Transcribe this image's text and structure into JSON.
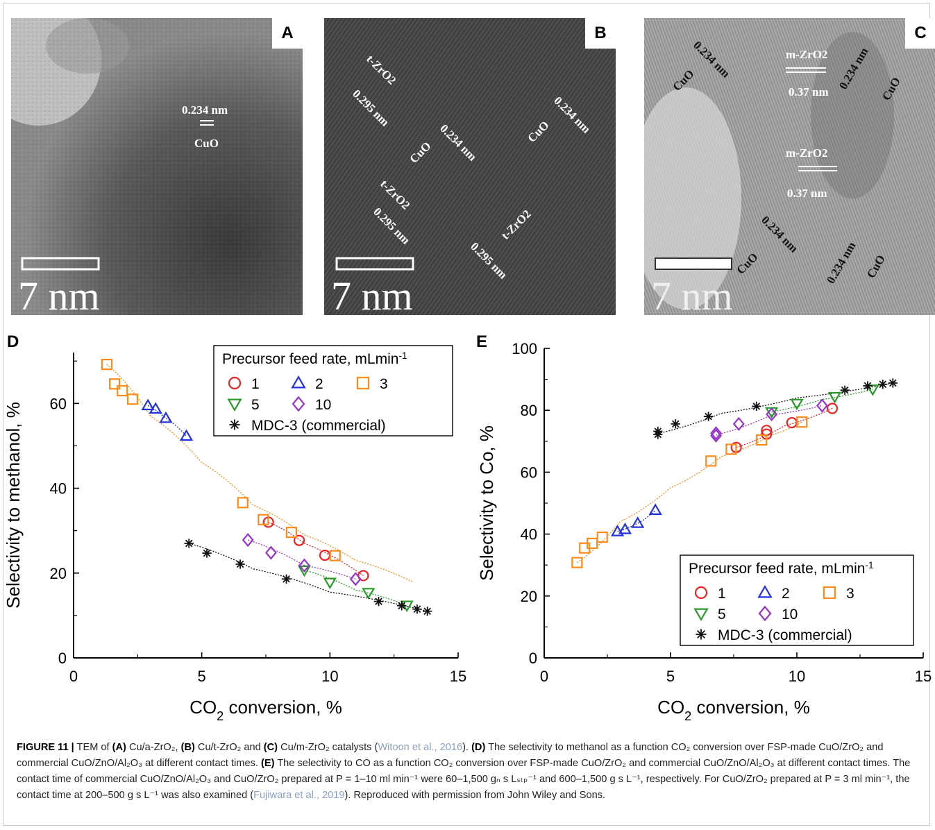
{
  "tem_panels": [
    {
      "id": "A",
      "scale": "7 nm",
      "annotations": [
        "0.234 nm",
        "CuO"
      ]
    },
    {
      "id": "B",
      "scale": "7 nm",
      "annotations": [
        "t-ZrO2",
        "0.295 nm",
        "0.234 nm",
        "CuO",
        "0.234 nm",
        "CuO",
        "t-ZrO2",
        "0.295 nm",
        "t-ZrO2",
        "0.295 nm"
      ]
    },
    {
      "id": "C",
      "scale": "7 nm",
      "annotations": [
        "0.234 nm",
        "CuO",
        "m-ZrO2",
        "0.37 nm",
        "0.234 nm",
        "CuO",
        "m-ZrO2",
        "0.37 nm",
        "0.234 nm",
        "CuO",
        "0.234 nm",
        "CuO"
      ]
    }
  ],
  "chart_data": [
    {
      "panel": "D",
      "type": "scatter",
      "xlabel": "CO2 conversion, %",
      "ylabel": "Selectivity to methanol, %",
      "xlim": [
        0,
        15
      ],
      "ylim": [
        0,
        72
      ],
      "xticks": [
        0,
        5,
        10,
        15
      ],
      "yticks": [
        0,
        20,
        40,
        60
      ],
      "legend_title": "Precursor feed rate, mLmin-1",
      "legend_position": "top-right",
      "series": [
        {
          "name": "1",
          "marker": "circle",
          "color": "#ee2222",
          "points": [
            [
              7.6,
              32.0
            ],
            [
              8.8,
              27.7
            ],
            [
              9.8,
              24.2
            ],
            [
              11.3,
              19.4
            ]
          ]
        },
        {
          "name": "2",
          "marker": "triangle-up",
          "color": "#2233dd",
          "points": [
            [
              2.9,
              59.5
            ],
            [
              3.2,
              58.7
            ],
            [
              3.6,
              56.5
            ],
            [
              4.4,
              52.3
            ]
          ]
        },
        {
          "name": "3",
          "marker": "square",
          "color": "#ff8c1a",
          "points": [
            [
              1.3,
              69.2
            ],
            [
              1.6,
              64.6
            ],
            [
              1.9,
              63.0
            ],
            [
              2.3,
              61.0
            ],
            [
              6.6,
              36.6
            ],
            [
              7.4,
              32.6
            ],
            [
              8.5,
              29.6
            ],
            [
              10.2,
              24.1
            ]
          ]
        },
        {
          "name": "5",
          "marker": "triangle-down",
          "color": "#2a9a2a",
          "points": [
            [
              9.0,
              20.7
            ],
            [
              10.0,
              17.8
            ],
            [
              11.5,
              15.4
            ],
            [
              13.0,
              12.4
            ]
          ]
        },
        {
          "name": "10",
          "marker": "diamond",
          "color": "#9933cc",
          "points": [
            [
              6.8,
              27.8
            ],
            [
              7.7,
              24.8
            ],
            [
              9.0,
              21.8
            ],
            [
              11.0,
              18.6
            ]
          ]
        },
        {
          "name": "MDC-3 (commercial)",
          "marker": "asterisk",
          "color": "#111111",
          "points": [
            [
              4.5,
              27.0
            ],
            [
              5.2,
              24.7
            ],
            [
              6.5,
              22.1
            ],
            [
              8.3,
              18.6
            ],
            [
              11.9,
              13.3
            ],
            [
              12.8,
              12.3
            ],
            [
              13.4,
              11.5
            ],
            [
              13.8,
              11.0
            ]
          ]
        }
      ],
      "fits": [
        {
          "color": "#ff8c1a",
          "points": [
            [
              1.3,
              69.2
            ],
            [
              3,
              57
            ],
            [
              5,
              46
            ],
            [
              7,
              36
            ],
            [
              9,
              29
            ],
            [
              11,
              23
            ],
            [
              13.2,
              18
            ]
          ]
        },
        {
          "color": "#ee2222",
          "points": [
            [
              7.6,
              32.0
            ],
            [
              9,
              27
            ],
            [
              11.3,
              19.4
            ]
          ]
        },
        {
          "color": "#2233dd",
          "points": [
            [
              2.9,
              59.5
            ],
            [
              3.6,
              56.5
            ],
            [
              4.4,
              52.3
            ]
          ]
        },
        {
          "color": "#2a9a2a",
          "points": [
            [
              9.0,
              20.7
            ],
            [
              11,
              16
            ],
            [
              13.0,
              12.4
            ]
          ]
        },
        {
          "color": "#9933cc",
          "points": [
            [
              6.8,
              27.8
            ],
            [
              9,
              21.8
            ],
            [
              11.0,
              18.6
            ]
          ]
        },
        {
          "color": "#111111",
          "points": [
            [
              4.5,
              27.0
            ],
            [
              7,
              21
            ],
            [
              10,
              15.5
            ],
            [
              13.8,
              11.0
            ]
          ]
        }
      ]
    },
    {
      "panel": "E",
      "type": "scatter",
      "xlabel": "CO2 conversion, %",
      "ylabel": "Selectivity to Co, %",
      "xlim": [
        0,
        15
      ],
      "ylim": [
        0,
        100
      ],
      "xticks": [
        0,
        5,
        10,
        15
      ],
      "yticks": [
        0,
        20,
        40,
        60,
        80,
        100
      ],
      "legend_title": "Precursor feed rate, mLmin-1",
      "legend_position": "bottom-right",
      "series": [
        {
          "name": "1",
          "marker": "circle",
          "color": "#ee2222",
          "points": [
            [
              7.6,
              68.0
            ],
            [
              8.8,
              72.3
            ],
            [
              8.8,
              73.5
            ],
            [
              9.8,
              76.0
            ],
            [
              11.4,
              80.6
            ]
          ]
        },
        {
          "name": "2",
          "marker": "triangle-up",
          "color": "#2233dd",
          "points": [
            [
              2.9,
              40.8
            ],
            [
              3.2,
              41.5
            ],
            [
              3.7,
              43.5
            ],
            [
              4.4,
              47.7
            ]
          ]
        },
        {
          "name": "3",
          "marker": "square",
          "color": "#ff8c1a",
          "points": [
            [
              1.3,
              30.8
            ],
            [
              1.6,
              35.5
            ],
            [
              1.9,
              37.0
            ],
            [
              2.3,
              39.0
            ],
            [
              6.6,
              63.6
            ],
            [
              7.4,
              67.4
            ],
            [
              8.6,
              70.4
            ],
            [
              10.2,
              76.2
            ]
          ]
        },
        {
          "name": "5",
          "marker": "triangle-down",
          "color": "#2a9a2a",
          "points": [
            [
              9.0,
              79.5
            ],
            [
              10.0,
              82.2
            ],
            [
              11.5,
              84.4
            ],
            [
              13.0,
              86.8
            ]
          ]
        },
        {
          "name": "10",
          "marker": "diamond",
          "color": "#9933cc",
          "points": [
            [
              6.8,
              71.8
            ],
            [
              6.8,
              72.6
            ],
            [
              7.7,
              75.6
            ],
            [
              9.0,
              78.7
            ],
            [
              11.0,
              81.5
            ]
          ]
        },
        {
          "name": "MDC-3 (commercial)",
          "marker": "asterisk",
          "color": "#111111",
          "points": [
            [
              4.5,
              72.2
            ],
            [
              4.5,
              73.2
            ],
            [
              5.2,
              75.6
            ],
            [
              6.5,
              78.0
            ],
            [
              8.4,
              81.3
            ],
            [
              11.9,
              86.5
            ],
            [
              12.8,
              87.9
            ],
            [
              13.4,
              88.4
            ],
            [
              13.8,
              88.8
            ]
          ]
        }
      ],
      "fits": [
        {
          "color": "#ff8c1a",
          "points": [
            [
              1.3,
              30.8
            ],
            [
              3,
              44
            ],
            [
              5,
              55
            ],
            [
              7,
              65
            ],
            [
              9,
              72
            ],
            [
              10.2,
              76.2
            ]
          ]
        },
        {
          "color": "#ee2222",
          "points": [
            [
              7.6,
              68.0
            ],
            [
              9.5,
              75
            ],
            [
              11.4,
              80.6
            ]
          ]
        },
        {
          "color": "#2233dd",
          "points": [
            [
              2.9,
              40.8
            ],
            [
              3.7,
              43.5
            ],
            [
              4.4,
              47.7
            ]
          ]
        },
        {
          "color": "#2a9a2a",
          "points": [
            [
              9.0,
              79.5
            ],
            [
              11,
              83.5
            ],
            [
              13.0,
              86.8
            ]
          ]
        },
        {
          "color": "#9933cc",
          "points": [
            [
              6.8,
              72.0
            ],
            [
              9,
              78.5
            ],
            [
              11.0,
              81.5
            ]
          ]
        },
        {
          "color": "#111111",
          "points": [
            [
              4.5,
              72.5
            ],
            [
              7,
              79
            ],
            [
              10,
              84
            ],
            [
              13.8,
              88.8
            ]
          ]
        }
      ]
    }
  ],
  "caption": {
    "label": "FIGURE 11 |",
    "t1": " TEM of ",
    "a": "(A)",
    "t2": " Cu/a-ZrO₂, ",
    "b": "(B)",
    "t3": " Cu/t-ZrO₂ and ",
    "c": "(C)",
    "t4": " Cu/m-ZrO₂ catalysts (",
    "cite1": "Witoon et al., 2016",
    "t5": "). ",
    "d": "(D)",
    "t6": " The selectivity to methanol as a function CO₂ conversion over FSP-made CuO/ZrO₂ and commercial CuO/ZnO/Al₂O₃ at different contact times. ",
    "e": "(E)",
    "t7": " The selectivity to CO as a function CO₂ conversion over FSP-made CuO/ZrO₂ and commercial CuO/ZnO/Al₂O₃ at different contact times. The contact time of commercial CuO/ZnO/Al₂O₃ and CuO/ZrO₂ prepared at P = 1–10 ml min⁻¹ were 60–1,500 gₙ s Lₛₜₚ⁻¹ and 600–1,500 g s L⁻¹, respectively. For CuO/ZrO₂ prepared at P = 3 ml min⁻¹, the contact time at 200–500 g s L⁻¹ was also examined (",
    "cite2": "Fujiwara et al., 2019",
    "t8": "). Reproduced with permission from John Wiley and Sons."
  }
}
